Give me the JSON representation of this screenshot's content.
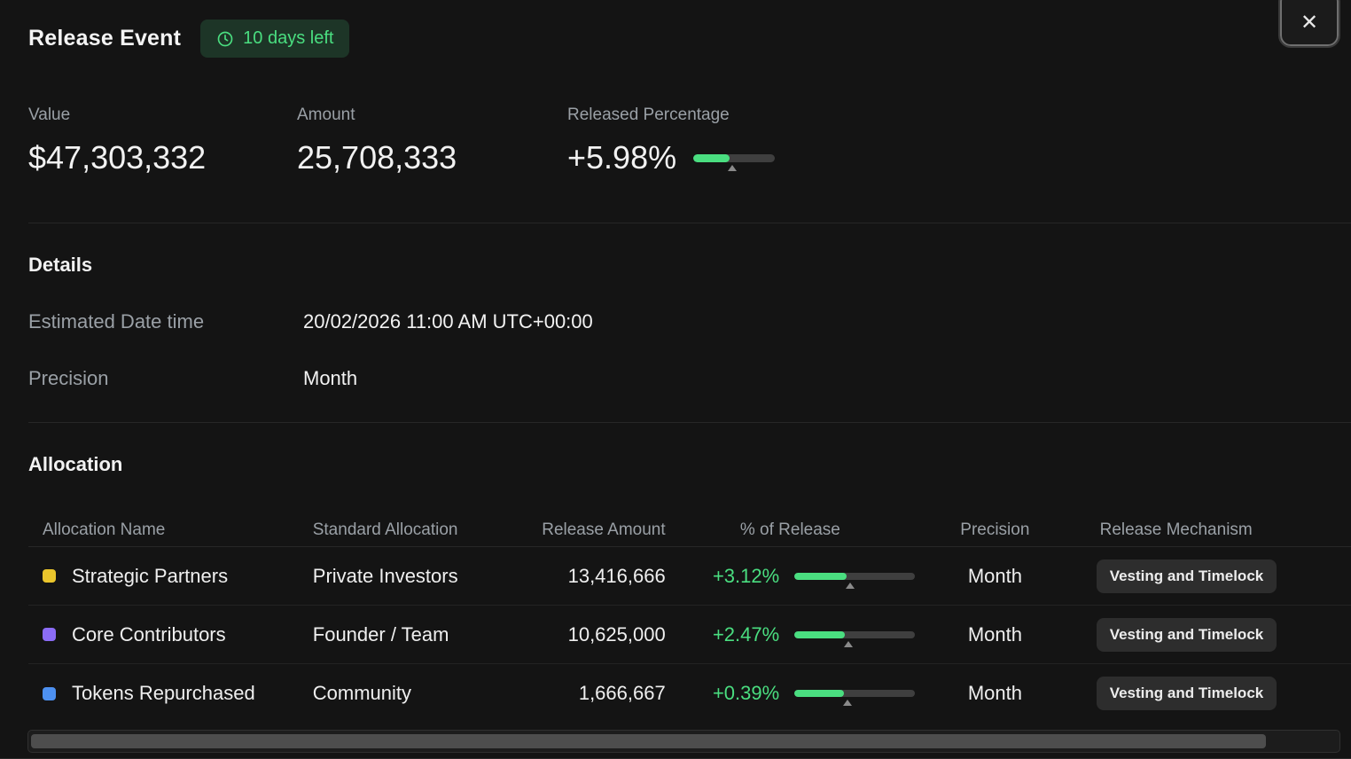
{
  "header": {
    "title": "Release Event",
    "days_left": "10 days left",
    "close_icon": "✕"
  },
  "stats": {
    "value_label": "Value",
    "value": "$47,303,332",
    "amount_label": "Amount",
    "amount": "25,708,333",
    "released_label": "Released Percentage",
    "released": "+5.98%",
    "released_progress": 44,
    "released_marker": 48
  },
  "details": {
    "title": "Details",
    "rows": [
      {
        "label": "Estimated Date time",
        "value": "20/02/2026 11:00 AM UTC+00:00"
      },
      {
        "label": "Precision",
        "value": "Month"
      }
    ]
  },
  "allocation": {
    "title": "Allocation",
    "columns": [
      "Allocation Name",
      "Standard Allocation",
      "Release Amount",
      "% of Release",
      "Precision",
      "Release Mechanism"
    ],
    "rows": [
      {
        "color": "#eac52c",
        "name": "Strategic Partners",
        "standard": "Private Investors",
        "amount": "13,416,666",
        "pct": "+3.12%",
        "progress": 43,
        "marker": 46,
        "precision": "Month",
        "mechanism": "Vesting and Timelock"
      },
      {
        "color": "#8b6cf6",
        "name": "Core Contributors",
        "standard": "Founder / Team",
        "amount": "10,625,000",
        "pct": "+2.47%",
        "progress": 42,
        "marker": 45,
        "precision": "Month",
        "mechanism": "Vesting and Timelock"
      },
      {
        "color": "#4d90f0",
        "name": "Tokens Repurchased",
        "standard": "Community",
        "amount": "1,666,667",
        "pct": "+0.39%",
        "progress": 41,
        "marker": 44,
        "precision": "Month",
        "mechanism": "Vesting and Timelock"
      }
    ]
  },
  "colors": {
    "accent_green": "#4ade80",
    "badge_bg": "#1d3527",
    "background": "#141414"
  }
}
